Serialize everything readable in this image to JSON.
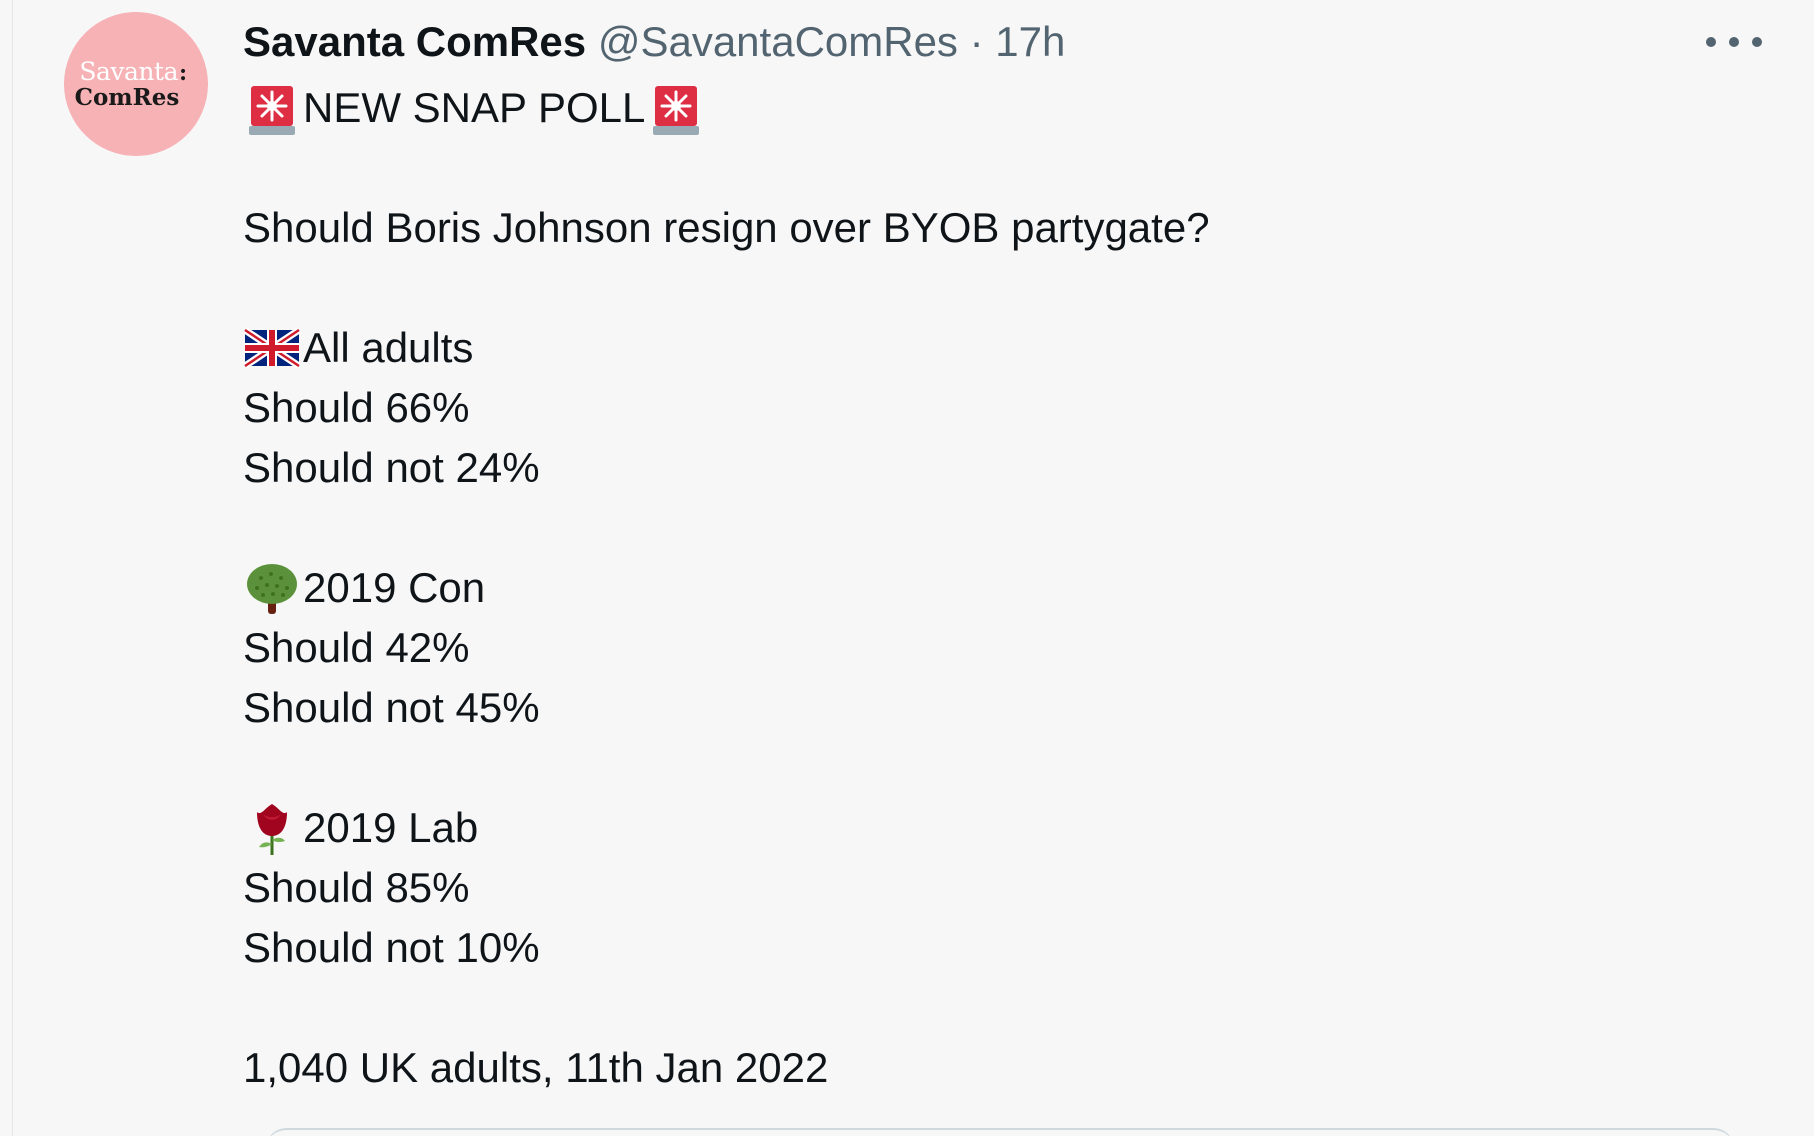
{
  "tweet": {
    "author_name": "Savanta ComRes",
    "handle": "@SavantaComRes",
    "separator": "·",
    "time": "17h",
    "avatar": {
      "line1": "Savanta",
      "line1_mark": ":",
      "line2": "ComRes"
    },
    "more_icon": "more-horizontal-icon",
    "headline": {
      "icon": "rotating-light-icon",
      "text": "NEW SNAP POLL"
    },
    "question": "Should Boris Johnson resign over BYOB partygate?",
    "groups": [
      {
        "icon": "uk-flag-icon",
        "label": "All adults",
        "lines": [
          "Should 66%",
          "Should not 24%"
        ]
      },
      {
        "icon": "deciduous-tree-icon",
        "label": "2019 Con",
        "lines": [
          "Should 42%",
          "Should not 45%"
        ]
      },
      {
        "icon": "rose-icon",
        "label": "2019 Lab",
        "lines": [
          "Should 85%",
          "Should not 10%"
        ]
      }
    ],
    "footer": "1,040 UK adults, 11th Jan 2022"
  },
  "colors": {
    "background": "#f7f7f7",
    "text": "#0f1419",
    "secondary_text": "#536471",
    "avatar_bg": "#f6b2b5"
  }
}
